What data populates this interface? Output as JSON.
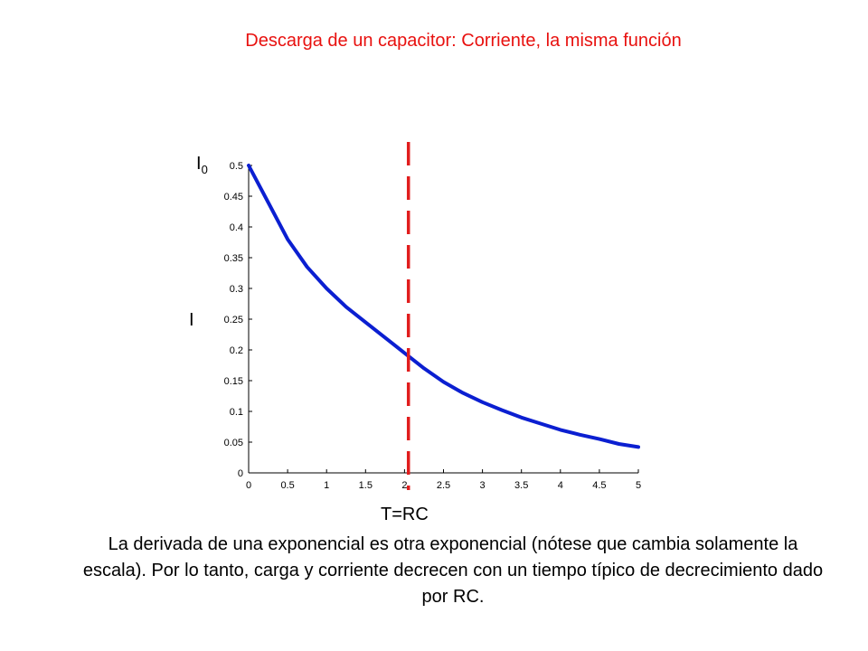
{
  "slide": {
    "title": "Descarga de un capacitor: Corriente, la misma función",
    "caption": "La derivada de una exponencial es otra exponencial (nótese que cambia solamente la escala). Por lo tanto, carga y corriente decrecen con un tiempo típico de decrecimiento dado por RC.",
    "title_color": "#e8110f"
  },
  "chart_data": {
    "type": "line",
    "xlim": [
      0,
      5
    ],
    "ylim": [
      0,
      0.5
    ],
    "xticks": [
      "0",
      "0.5",
      "1",
      "1.5",
      "2",
      "2.5",
      "3",
      "3.5",
      "4",
      "4.5",
      "5"
    ],
    "yticks": [
      "0",
      "0.05",
      "0.1",
      "0.15",
      "0.2",
      "0.25",
      "0.3",
      "0.35",
      "0.4",
      "0.45",
      "0.5"
    ],
    "series": [
      {
        "color": "#0b1fd1",
        "x": [
          0,
          0.25,
          0.5,
          0.75,
          1.0,
          1.25,
          1.5,
          1.75,
          2.0,
          2.25,
          2.5,
          2.75,
          3.0,
          3.25,
          3.5,
          3.75,
          4.0,
          4.25,
          4.5,
          4.75,
          5.0
        ],
        "y": [
          0.5,
          0.44,
          0.38,
          0.335,
          0.3,
          0.27,
          0.245,
          0.22,
          0.195,
          0.17,
          0.148,
          0.13,
          0.115,
          0.102,
          0.09,
          0.08,
          0.07,
          0.062,
          0.055,
          0.047,
          0.042
        ]
      }
    ],
    "ylabel_main": "I",
    "ylabel_main_sub": "0",
    "ylabel_secondary": "I",
    "vline": {
      "x": 2.05,
      "label": "T=RC",
      "color": "#e11d1d"
    }
  }
}
